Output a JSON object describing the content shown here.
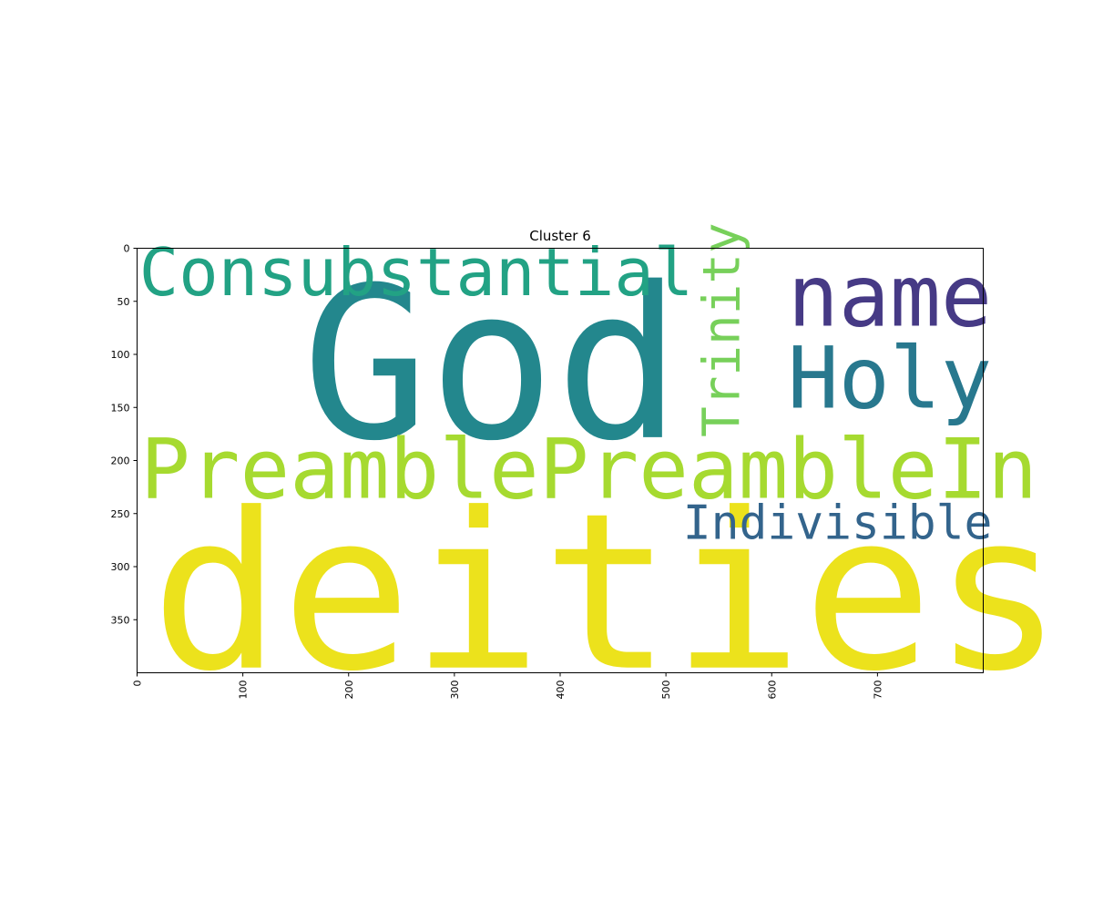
{
  "chart_data": {
    "type": "wordcloud",
    "title": "Cluster 6",
    "xlim": [
      0,
      800
    ],
    "ylim": [
      400,
      0
    ],
    "x_ticks": [
      0,
      100,
      200,
      300,
      400,
      500,
      600,
      700
    ],
    "y_ticks": [
      0,
      50,
      100,
      150,
      200,
      250,
      300,
      350
    ],
    "x_tick_rotation": "vertical",
    "words": [
      {
        "text": "deities",
        "x": 13,
        "y": 395,
        "size": 204,
        "color": "#ece21c",
        "orientation": "horizontal"
      },
      {
        "text": "God",
        "x": 156,
        "y": 178,
        "size": 198,
        "color": "#23878d",
        "orientation": "horizontal"
      },
      {
        "text": "PreamblePreambleIn",
        "x": 3,
        "y": 235,
        "size": 78,
        "color": "#a6da30",
        "orientation": "horizontal"
      },
      {
        "text": "Consubstantial",
        "x": 2,
        "y": 44,
        "size": 62,
        "color": "#22a284",
        "orientation": "horizontal"
      },
      {
        "text": "name",
        "x": 615,
        "y": 73,
        "size": 80,
        "color": "#463a85",
        "orientation": "horizontal"
      },
      {
        "text": "Holy",
        "x": 615,
        "y": 150,
        "size": 80,
        "color": "#28788e",
        "orientation": "horizontal"
      },
      {
        "text": "Trinity",
        "x": 569,
        "y": 178,
        "size": 48,
        "color": "#77d05a",
        "orientation": "vertical"
      },
      {
        "text": "Indivisible",
        "x": 516,
        "y": 274,
        "size": 44,
        "color": "#33648c",
        "orientation": "horizontal"
      }
    ]
  }
}
